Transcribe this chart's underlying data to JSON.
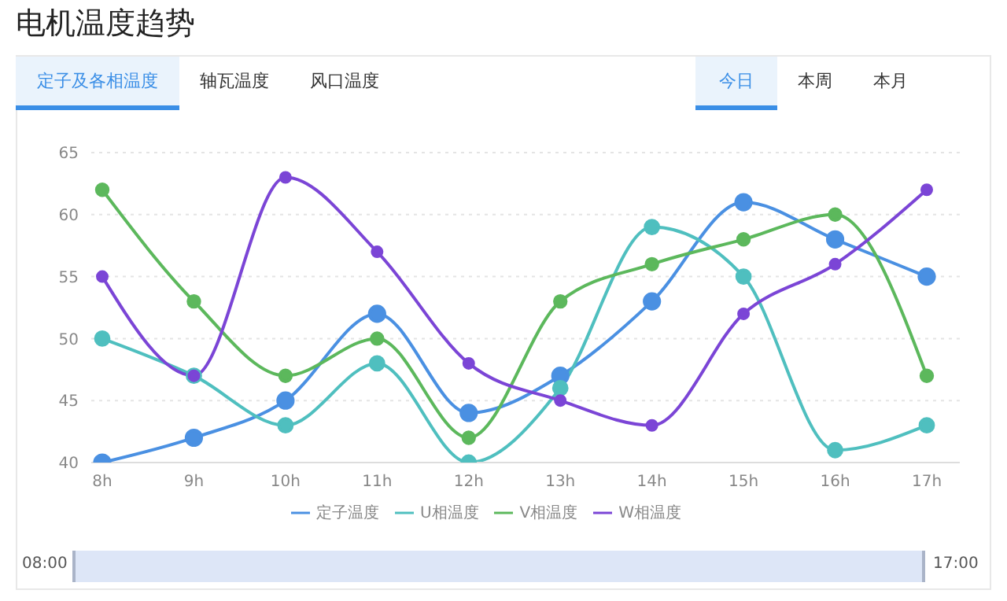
{
  "chart_data": {
    "type": "line",
    "title": "电机温度趋势",
    "categories": [
      "8h",
      "9h",
      "10h",
      "11h",
      "12h",
      "13h",
      "14h",
      "15h",
      "16h",
      "17h"
    ],
    "series": [
      {
        "name": "定子温度",
        "color": "#4a90e2",
        "values": [
          40,
          42,
          45,
          52,
          44,
          47,
          53,
          61,
          58,
          55
        ]
      },
      {
        "name": "U相温度",
        "color": "#4fbfbf",
        "values": [
          50,
          47,
          43,
          48,
          40,
          46,
          59,
          55,
          41,
          43
        ]
      },
      {
        "name": "V相温度",
        "color": "#5cb85c",
        "values": [
          62,
          53,
          47,
          50,
          42,
          53,
          56,
          58,
          60,
          47
        ]
      },
      {
        "name": "W相温度",
        "color": "#7b45d6",
        "values": [
          55,
          47,
          63,
          57,
          48,
          45,
          43,
          52,
          56,
          62
        ]
      }
    ],
    "ylim": [
      40,
      65
    ],
    "yticks": [
      40,
      45,
      50,
      55,
      60,
      65
    ],
    "grid": "y",
    "legend": "bottom",
    "marker": "circle",
    "line_style": "solid",
    "annotations": [
      "定子及各相温度",
      "轴瓦温度",
      "风口温度",
      "今日",
      "本周",
      "本月",
      "08:00",
      "17:00"
    ]
  }
}
